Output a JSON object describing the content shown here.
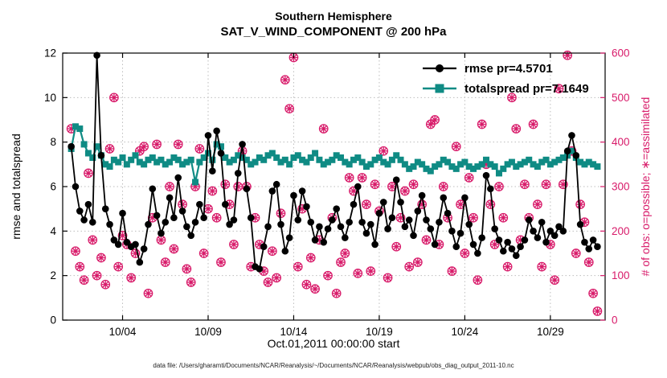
{
  "footer": {
    "text": "data file: /Users/gharamti/Documents/NCAR/Reanalysis/~/Documents/NCAR/Reanalysis/webpub/obs_diag_output_2011-10.nc"
  },
  "chart_data": {
    "type": "line",
    "title": "Southern Hemisphere",
    "subtitle": "SAT_V_WIND_COMPONENT @ 200 hPa",
    "xlabel": "Oct.01,2011 00:00:00 start",
    "ylabel_left": "rmse and totalspread",
    "ylabel_right": "# of obs: o=possible; ∗=assimilated",
    "xlim": [
      -0.5,
      31.2
    ],
    "x_step_days": 0.25,
    "xticks": [
      {
        "day": 3,
        "label": "10/04"
      },
      {
        "day": 8,
        "label": "10/09"
      },
      {
        "day": 13,
        "label": "10/14"
      },
      {
        "day": 18,
        "label": "10/19"
      },
      {
        "day": 23,
        "label": "10/24"
      },
      {
        "day": 28,
        "label": "10/29"
      }
    ],
    "ylim_left": [
      0,
      12
    ],
    "yticks_left": [
      0,
      2,
      4,
      6,
      8,
      10,
      12
    ],
    "ylim_right": [
      0,
      600
    ],
    "yticks_right": [
      0,
      100,
      200,
      300,
      400,
      500,
      600
    ],
    "grid": true,
    "legend_position": "top-right",
    "axis_color_left": "#000000",
    "axis_color_right": "#d81b6a",
    "series": [
      {
        "name": "rmse",
        "label": "rmse pr=4.5701",
        "color": "#000000",
        "marker": "circle",
        "values": [
          7.8,
          6.0,
          4.9,
          4.5,
          5.2,
          4.4,
          11.9,
          7.4,
          5.0,
          4.3,
          3.6,
          3.4,
          4.8,
          3.5,
          3.3,
          3.4,
          2.6,
          3.2,
          4.3,
          5.9,
          4.7,
          3.9,
          4.4,
          5.5,
          4.6,
          6.4,
          4.9,
          4.2,
          3.8,
          4.4,
          5.2,
          4.6,
          8.3,
          6.7,
          8.5,
          7.5,
          5.2,
          4.3,
          4.5,
          6.6,
          7.9,
          5.9,
          4.6,
          2.4,
          2.3,
          3.3,
          4.2,
          5.8,
          6.1,
          4.3,
          3.1,
          3.7,
          5.6,
          4.5,
          5.8,
          5.1,
          4.4,
          3.6,
          4.2,
          3.5,
          4.1,
          4.5,
          5.0,
          4.2,
          3.7,
          4.4,
          5.2,
          6.0,
          4.4,
          3.9,
          4.3,
          3.4,
          4.8,
          5.3,
          4.1,
          4.6,
          6.3,
          5.3,
          4.2,
          4.5,
          3.8,
          4.9,
          5.6,
          4.5,
          4.1,
          3.4,
          4.4,
          5.5,
          4.8,
          4.0,
          3.3,
          3.9,
          5.5,
          4.3,
          3.4,
          3.0,
          3.7,
          6.5,
          5.9,
          4.1,
          3.6,
          3.1,
          3.5,
          3.2,
          2.9,
          3.3,
          3.6,
          4.5,
          4.0,
          3.7,
          4.4,
          3.5,
          4.0,
          3.8,
          4.2,
          4.0,
          7.6,
          8.3,
          7.4,
          4.3,
          3.5,
          3.2,
          3.6,
          3.3
        ]
      },
      {
        "name": "totalspread",
        "label": "totalspread pr=7.1649",
        "color": "#0f8b84",
        "marker": "square",
        "values": [
          7.7,
          8.7,
          8.6,
          7.9,
          7.5,
          7.3,
          7.8,
          7.4,
          7.0,
          6.9,
          7.2,
          7.1,
          7.3,
          7.0,
          7.2,
          7.4,
          7.1,
          7.0,
          7.2,
          7.3,
          7.1,
          7.2,
          7.0,
          7.1,
          7.3,
          7.2,
          7.0,
          7.1,
          7.2,
          6.2,
          7.1,
          7.3,
          7.5,
          7.2,
          7.9,
          7.8,
          7.3,
          7.1,
          7.2,
          7.4,
          7.3,
          7.2,
          7.0,
          7.1,
          7.3,
          7.2,
          7.4,
          7.5,
          7.3,
          7.1,
          7.2,
          7.0,
          7.3,
          7.4,
          7.2,
          7.1,
          7.3,
          7.5,
          7.2,
          7.0,
          7.1,
          7.2,
          7.4,
          7.3,
          7.1,
          7.0,
          7.2,
          7.3,
          7.1,
          6.9,
          7.0,
          7.2,
          7.3,
          7.1,
          7.0,
          7.2,
          7.4,
          7.2,
          7.0,
          6.8,
          6.9,
          7.1,
          7.0,
          6.8,
          6.7,
          6.9,
          7.0,
          7.2,
          7.1,
          6.9,
          6.8,
          7.0,
          7.1,
          6.9,
          6.8,
          6.9,
          7.0,
          7.2,
          7.0,
          6.9,
          6.6,
          6.8,
          7.0,
          7.1,
          6.9,
          7.0,
          7.1,
          7.2,
          7.0,
          6.9,
          7.1,
          7.2,
          7.0,
          7.1,
          7.2,
          7.3,
          7.4,
          7.6,
          7.3,
          7.1,
          7.0,
          7.1,
          7.0,
          6.9
        ]
      }
    ],
    "scatter": {
      "name": "obs-count",
      "label": "# of obs (possible = assimilated)",
      "color": "#d81b6a",
      "marker": "circle-asterisk",
      "values": [
        430,
        155,
        120,
        90,
        330,
        180,
        100,
        140,
        80,
        385,
        500,
        120,
        190,
        170,
        95,
        150,
        380,
        390,
        60,
        230,
        395,
        180,
        130,
        300,
        160,
        395,
        260,
        115,
        85,
        300,
        385,
        150,
        250,
        290,
        230,
        130,
        305,
        260,
        170,
        300,
        380,
        300,
        120,
        230,
        170,
        110,
        85,
        155,
        95,
        240,
        540,
        475,
        590,
        120,
        250,
        80,
        140,
        70,
        180,
        430,
        100,
        230,
        60,
        130,
        150,
        320,
        290,
        105,
        320,
        260,
        110,
        305,
        245,
        380,
        95,
        300,
        165,
        230,
        290,
        120,
        305,
        130,
        260,
        180,
        440,
        450,
        170,
        300,
        230,
        110,
        390,
        260,
        150,
        320,
        230,
        90,
        440,
        350,
        260,
        170,
        300,
        230,
        120,
        500,
        430,
        180,
        305,
        230,
        440,
        260,
        120,
        305,
        170,
        90,
        520,
        305,
        595,
        380,
        150,
        260,
        220,
        130,
        60,
        20
      ]
    }
  }
}
